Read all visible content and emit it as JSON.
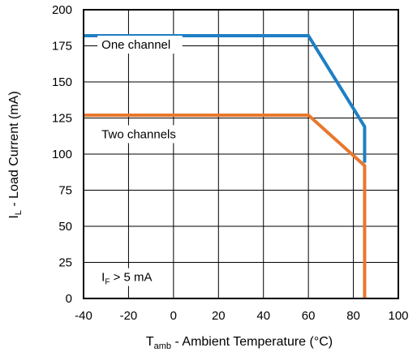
{
  "chart_data": {
    "type": "line",
    "x_axis": {
      "label_main": "T",
      "label_sub": "amb",
      "label_rest": " - Ambient Temperature (°C)",
      "range": [
        -40,
        100
      ],
      "ticks": [
        -40,
        -20,
        0,
        20,
        40,
        60,
        80,
        100
      ]
    },
    "y_axis": {
      "label_main": "I",
      "label_sub": "L",
      "label_rest": " - Load Current (mA)",
      "range": [
        0,
        200
      ],
      "ticks": [
        0,
        25,
        50,
        75,
        100,
        125,
        150,
        175,
        200
      ]
    },
    "grid": true,
    "series": [
      {
        "name": "One channel",
        "color": "#1f7fc4",
        "x": [
          -40,
          60,
          85,
          85
        ],
        "y": [
          182,
          182,
          119,
          94
        ]
      },
      {
        "name": "Two channels",
        "color": "#e8772e",
        "x": [
          -40,
          60,
          85,
          85
        ],
        "y": [
          127,
          127,
          92,
          0
        ]
      }
    ],
    "annotations": [
      {
        "id": "one-channel-label",
        "text": "One channel",
        "at": [
          -32,
          173
        ]
      },
      {
        "id": "two-channels-label",
        "text": "Two channels",
        "at": [
          -32,
          111
        ]
      },
      {
        "id": "condition-label",
        "main": "I",
        "sub": "F",
        "rest": " > 5 mA",
        "at": [
          -32,
          12
        ]
      }
    ]
  }
}
